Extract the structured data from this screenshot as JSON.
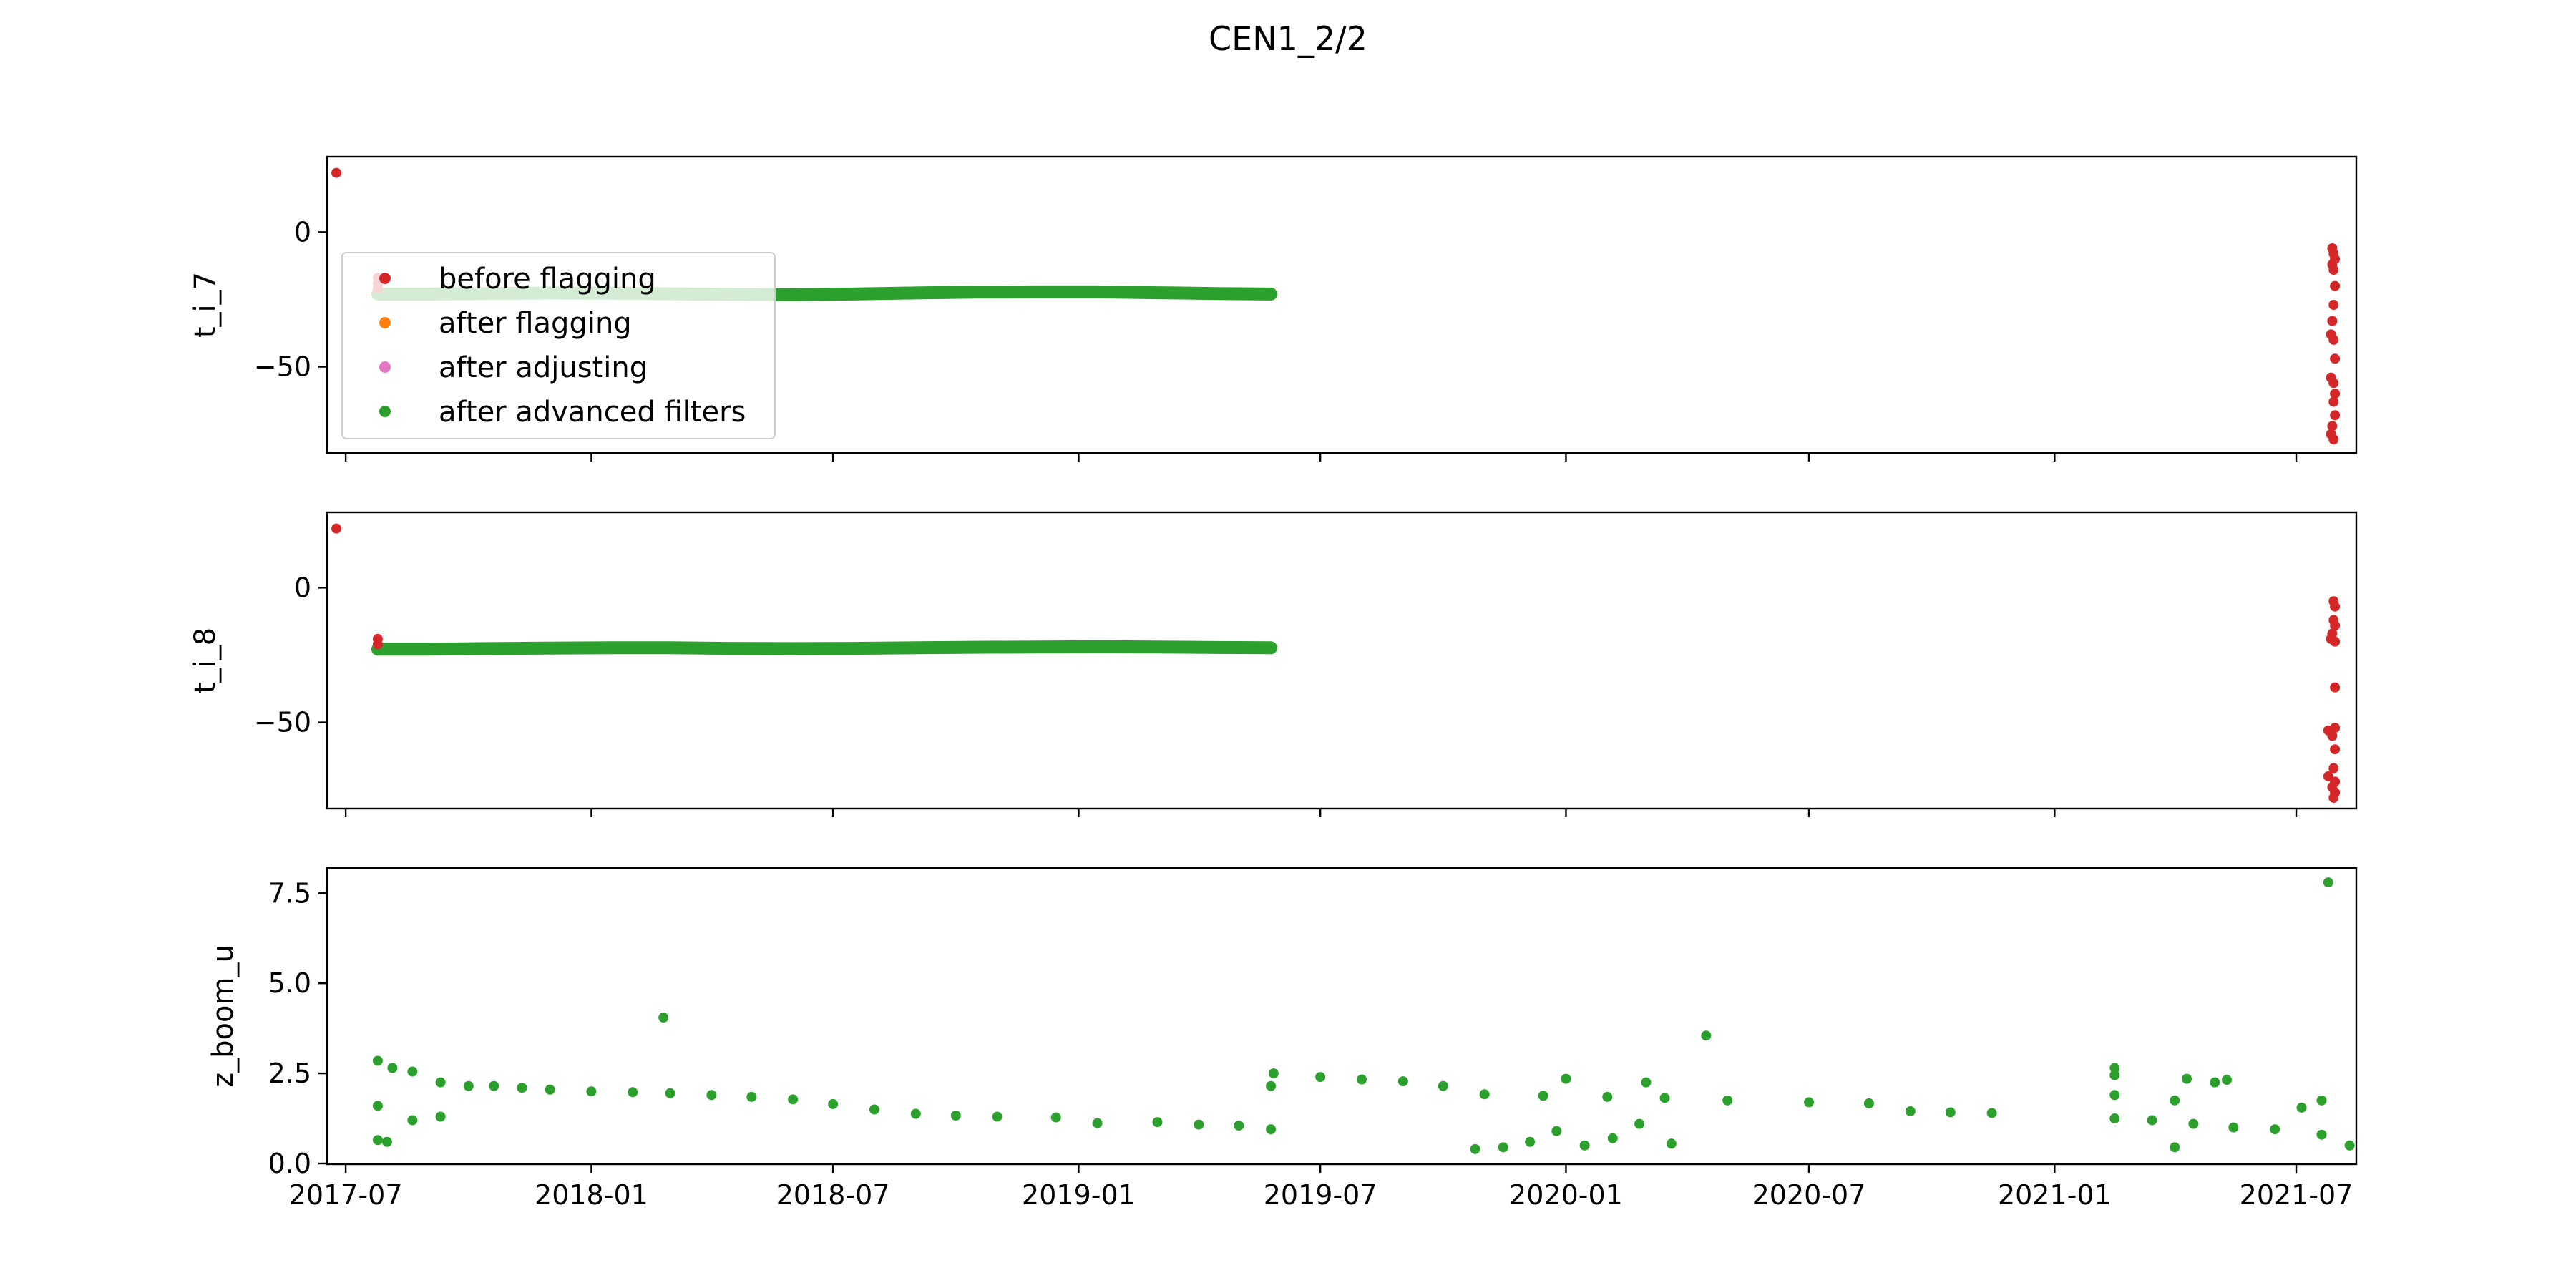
{
  "figure": {
    "title": "CEN1_2/2"
  },
  "colors": {
    "before_flagging": "#d62728",
    "after_flagging": "#ff7f0e",
    "after_adjusting": "#e377c2",
    "after_advanced_filters": "#2ca02c"
  },
  "legend": {
    "placement": "upper-left of top panel",
    "entries": [
      {
        "label": "before flagging",
        "color": "#d62728"
      },
      {
        "label": "after flagging",
        "color": "#ff7f0e"
      },
      {
        "label": "after adjusting",
        "color": "#e377c2"
      },
      {
        "label": "after advanced filters",
        "color": "#2ca02c"
      }
    ]
  },
  "chart_data": [
    {
      "type": "scatter",
      "ylabel": "t_i_7",
      "xlabel": "",
      "xlim": [
        "2017-06-17",
        "2021-08-15"
      ],
      "ylim": [
        -82,
        28
      ],
      "yticks": [
        0,
        -50
      ],
      "xticks": [
        "2017-07",
        "2018-01",
        "2018-07",
        "2019-01",
        "2019-07",
        "2020-01",
        "2020-07",
        "2021-01",
        "2021-07"
      ],
      "xtick_labels_visible": false,
      "series": [
        {
          "name": "before flagging",
          "color": "#d62728",
          "points": [
            {
              "x": "2017-06-24",
              "y": 22
            },
            {
              "x": "2017-07-25",
              "y": -17
            },
            {
              "x": "2017-07-25",
              "y": -19
            },
            {
              "x": "2017-07-25",
              "y": -21
            },
            {
              "x": "2021-07-28",
              "y": -6
            },
            {
              "x": "2021-07-29",
              "y": -8
            },
            {
              "x": "2021-07-30",
              "y": -10
            },
            {
              "x": "2021-07-28",
              "y": -12
            },
            {
              "x": "2021-07-29",
              "y": -14
            },
            {
              "x": "2021-07-30",
              "y": -20
            },
            {
              "x": "2021-07-29",
              "y": -27
            },
            {
              "x": "2021-07-28",
              "y": -33
            },
            {
              "x": "2021-07-27",
              "y": -38
            },
            {
              "x": "2021-07-29",
              "y": -40
            },
            {
              "x": "2021-07-30",
              "y": -47
            },
            {
              "x": "2021-07-27",
              "y": -54
            },
            {
              "x": "2021-07-29",
              "y": -56
            },
            {
              "x": "2021-07-30",
              "y": -60
            },
            {
              "x": "2021-07-29",
              "y": -63
            },
            {
              "x": "2021-07-30",
              "y": -68
            },
            {
              "x": "2021-07-28",
              "y": -72
            },
            {
              "x": "2021-07-27",
              "y": -75
            },
            {
              "x": "2021-07-29",
              "y": -77
            }
          ]
        },
        {
          "name": "after flagging",
          "color": "#ff7f0e",
          "points": []
        },
        {
          "name": "after adjusting",
          "color": "#e377c2",
          "points": []
        },
        {
          "name": "after advanced filters",
          "color": "#2ca02c",
          "points": [
            {
              "x": "2017-07-25",
              "y": -23.0
            },
            {
              "x": "2017-09-01",
              "y": -23.0
            },
            {
              "x": "2017-10-15",
              "y": -22.8
            },
            {
              "x": "2017-12-01",
              "y": -22.6
            },
            {
              "x": "2018-01-15",
              "y": -22.7
            },
            {
              "x": "2018-03-01",
              "y": -22.9
            },
            {
              "x": "2018-04-15",
              "y": -23.1
            },
            {
              "x": "2018-06-01",
              "y": -23.2
            },
            {
              "x": "2018-07-15",
              "y": -23.0
            },
            {
              "x": "2018-09-01",
              "y": -22.6
            },
            {
              "x": "2018-10-15",
              "y": -22.3
            },
            {
              "x": "2018-12-01",
              "y": -22.2
            },
            {
              "x": "2019-01-15",
              "y": -22.2
            },
            {
              "x": "2019-03-01",
              "y": -22.5
            },
            {
              "x": "2019-04-15",
              "y": -22.8
            },
            {
              "x": "2019-05-25",
              "y": -23.0
            }
          ]
        }
      ]
    },
    {
      "type": "scatter",
      "ylabel": "t_i_8",
      "xlabel": "",
      "xlim": [
        "2017-06-17",
        "2021-08-15"
      ],
      "ylim": [
        -82,
        28
      ],
      "yticks": [
        0,
        -50
      ],
      "xticks": [
        "2017-07",
        "2018-01",
        "2018-07",
        "2019-01",
        "2019-07",
        "2020-01",
        "2020-07",
        "2021-01",
        "2021-07"
      ],
      "xtick_labels_visible": false,
      "series": [
        {
          "name": "before flagging",
          "color": "#d62728",
          "points": [
            {
              "x": "2017-06-24",
              "y": 22
            },
            {
              "x": "2017-07-25",
              "y": -19
            },
            {
              "x": "2017-07-25",
              "y": -21
            },
            {
              "x": "2021-07-29",
              "y": -5
            },
            {
              "x": "2021-07-30",
              "y": -7
            },
            {
              "x": "2021-07-29",
              "y": -12
            },
            {
              "x": "2021-07-30",
              "y": -14
            },
            {
              "x": "2021-07-28",
              "y": -17
            },
            {
              "x": "2021-07-27",
              "y": -19
            },
            {
              "x": "2021-07-30",
              "y": -20
            },
            {
              "x": "2021-07-30",
              "y": -37
            },
            {
              "x": "2021-07-25",
              "y": -53
            },
            {
              "x": "2021-07-30",
              "y": -52
            },
            {
              "x": "2021-07-28",
              "y": -55
            },
            {
              "x": "2021-07-30",
              "y": -60
            },
            {
              "x": "2021-07-29",
              "y": -67
            },
            {
              "x": "2021-07-25",
              "y": -70
            },
            {
              "x": "2021-07-30",
              "y": -72
            },
            {
              "x": "2021-07-28",
              "y": -74
            },
            {
              "x": "2021-07-30",
              "y": -76
            },
            {
              "x": "2021-07-29",
              "y": -78
            }
          ]
        },
        {
          "name": "after flagging",
          "color": "#ff7f0e",
          "points": []
        },
        {
          "name": "after adjusting",
          "color": "#e377c2",
          "points": []
        },
        {
          "name": "after advanced filters",
          "color": "#2ca02c",
          "points": [
            {
              "x": "2017-07-25",
              "y": -22.8
            },
            {
              "x": "2017-09-01",
              "y": -22.8
            },
            {
              "x": "2017-10-15",
              "y": -22.6
            },
            {
              "x": "2017-12-01",
              "y": -22.4
            },
            {
              "x": "2018-01-15",
              "y": -22.3
            },
            {
              "x": "2018-03-01",
              "y": -22.3
            },
            {
              "x": "2018-04-15",
              "y": -22.5
            },
            {
              "x": "2018-06-01",
              "y": -22.6
            },
            {
              "x": "2018-07-15",
              "y": -22.5
            },
            {
              "x": "2018-09-01",
              "y": -22.3
            },
            {
              "x": "2018-10-15",
              "y": -22.1
            },
            {
              "x": "2018-12-01",
              "y": -22.0
            },
            {
              "x": "2019-01-15",
              "y": -21.9
            },
            {
              "x": "2019-03-01",
              "y": -22.0
            },
            {
              "x": "2019-04-15",
              "y": -22.2
            },
            {
              "x": "2019-05-25",
              "y": -22.3
            }
          ]
        }
      ]
    },
    {
      "type": "scatter",
      "ylabel": "z_boom_u",
      "xlabel": "",
      "xlim": [
        "2017-06-17",
        "2021-08-15"
      ],
      "ylim": [
        -0.02,
        8.2
      ],
      "yticks": [
        0.0,
        2.5,
        5.0,
        7.5
      ],
      "xticks": [
        "2017-07",
        "2018-01",
        "2018-07",
        "2019-01",
        "2019-07",
        "2020-01",
        "2020-07",
        "2021-01",
        "2021-07"
      ],
      "xtick_labels_visible": true,
      "series": [
        {
          "name": "before flagging",
          "color": "#d62728",
          "points": []
        },
        {
          "name": "after flagging",
          "color": "#ff7f0e",
          "points": []
        },
        {
          "name": "after adjusting",
          "color": "#e377c2",
          "points": []
        },
        {
          "name": "after advanced filters",
          "color": "#2ca02c",
          "points": [
            {
              "x": "2017-07-25",
              "y": 2.85
            },
            {
              "x": "2017-08-05",
              "y": 2.65
            },
            {
              "x": "2017-08-20",
              "y": 2.55
            },
            {
              "x": "2017-09-10",
              "y": 2.25
            },
            {
              "x": "2017-10-01",
              "y": 2.15
            },
            {
              "x": "2017-10-20",
              "y": 2.15
            },
            {
              "x": "2017-11-10",
              "y": 2.1
            },
            {
              "x": "2017-12-01",
              "y": 2.05
            },
            {
              "x": "2018-01-01",
              "y": 2.0
            },
            {
              "x": "2018-02-01",
              "y": 1.98
            },
            {
              "x": "2018-03-01",
              "y": 1.95
            },
            {
              "x": "2018-04-01",
              "y": 1.9
            },
            {
              "x": "2018-05-01",
              "y": 1.85
            },
            {
              "x": "2018-06-01",
              "y": 1.78
            },
            {
              "x": "2018-07-01",
              "y": 1.65
            },
            {
              "x": "2018-08-01",
              "y": 1.5
            },
            {
              "x": "2018-09-01",
              "y": 1.38
            },
            {
              "x": "2018-10-01",
              "y": 1.33
            },
            {
              "x": "2018-11-01",
              "y": 1.3
            },
            {
              "x": "2018-12-15",
              "y": 1.28
            },
            {
              "x": "2019-01-15",
              "y": 1.12
            },
            {
              "x": "2019-03-01",
              "y": 1.15
            },
            {
              "x": "2019-04-01",
              "y": 1.08
            },
            {
              "x": "2019-05-01",
              "y": 1.05
            },
            {
              "x": "2019-05-25",
              "y": 0.95
            },
            {
              "x": "2019-05-27",
              "y": 2.5
            },
            {
              "x": "2019-07-01",
              "y": 2.4
            },
            {
              "x": "2019-08-01",
              "y": 2.33
            },
            {
              "x": "2019-09-01",
              "y": 2.28
            },
            {
              "x": "2019-10-01",
              "y": 2.15
            },
            {
              "x": "2019-11-01",
              "y": 1.92
            },
            {
              "x": "2019-12-15",
              "y": 1.88
            },
            {
              "x": "2020-02-01",
              "y": 1.85
            },
            {
              "x": "2020-03-15",
              "y": 1.82
            },
            {
              "x": "2020-05-01",
              "y": 1.75
            },
            {
              "x": "2020-07-01",
              "y": 1.7
            },
            {
              "x": "2020-08-15",
              "y": 1.67
            },
            {
              "x": "2020-09-15",
              "y": 1.45
            },
            {
              "x": "2020-10-15",
              "y": 1.42
            },
            {
              "x": "2020-11-15",
              "y": 1.4
            },
            {
              "x": "2021-02-15",
              "y": 1.25
            },
            {
              "x": "2021-03-15",
              "y": 1.2
            },
            {
              "x": "2021-04-15",
              "y": 1.1
            },
            {
              "x": "2021-05-15",
              "y": 1.0
            },
            {
              "x": "2021-06-15",
              "y": 0.95
            },
            {
              "x": "2021-07-20",
              "y": 0.8
            },
            {
              "x": "2021-08-10",
              "y": 0.5
            },
            {
              "x": "2019-10-25",
              "y": 0.4
            },
            {
              "x": "2019-11-15",
              "y": 0.45
            },
            {
              "x": "2019-12-05",
              "y": 0.6
            },
            {
              "x": "2019-12-25",
              "y": 0.9
            },
            {
              "x": "2020-01-15",
              "y": 0.5
            },
            {
              "x": "2020-02-05",
              "y": 0.7
            },
            {
              "x": "2020-02-25",
              "y": 1.1
            },
            {
              "x": "2020-03-20",
              "y": 0.55
            },
            {
              "x": "2020-01-01",
              "y": 2.35
            },
            {
              "x": "2020-03-01",
              "y": 2.25
            },
            {
              "x": "2020-04-15",
              "y": 3.55
            },
            {
              "x": "2018-02-24",
              "y": 4.05
            },
            {
              "x": "2017-07-25",
              "y": 0.65
            },
            {
              "x": "2017-08-01",
              "y": 0.6
            },
            {
              "x": "2017-08-20",
              "y": 1.2
            },
            {
              "x": "2017-09-10",
              "y": 1.3
            },
            {
              "x": "2017-07-25",
              "y": 1.6
            },
            {
              "x": "2019-05-25",
              "y": 2.15
            },
            {
              "x": "2021-02-15",
              "y": 2.65
            },
            {
              "x": "2021-02-15",
              "y": 2.45
            },
            {
              "x": "2021-02-15",
              "y": 1.9
            },
            {
              "x": "2021-04-01",
              "y": 0.45
            },
            {
              "x": "2021-04-01",
              "y": 1.75
            },
            {
              "x": "2021-04-10",
              "y": 2.35
            },
            {
              "x": "2021-05-01",
              "y": 2.25
            },
            {
              "x": "2021-05-10",
              "y": 2.32
            },
            {
              "x": "2021-07-05",
              "y": 1.55
            },
            {
              "x": "2021-07-20",
              "y": 1.75
            },
            {
              "x": "2021-07-25",
              "y": 7.8
            }
          ]
        }
      ]
    }
  ]
}
